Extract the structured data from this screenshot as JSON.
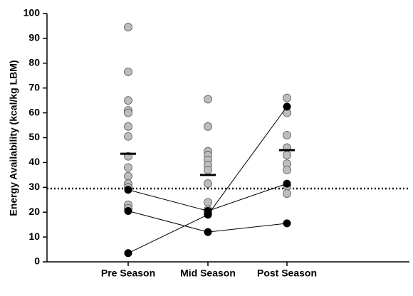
{
  "chart_data": {
    "type": "dot",
    "ylabel": "Energy Availability (kcal/kg LBM)",
    "categories": [
      "Pre Season",
      "Mid Season",
      "Post Season"
    ],
    "groups": [
      {
        "color": "#bdbdbd",
        "values": [
          94.5,
          76.5,
          65,
          61,
          60,
          54.5,
          50.5,
          42.5,
          38,
          34.5,
          31.5,
          30,
          23,
          21.5
        ]
      },
      {
        "color": "#bdbdbd",
        "values": [
          65.5,
          54.5,
          44.5,
          43,
          41,
          39,
          37,
          31.5,
          24,
          21,
          19.5
        ]
      },
      {
        "color": "#bdbdbd",
        "values": [
          66,
          60,
          51,
          46,
          43,
          39.5,
          37,
          30.5,
          27.5
        ]
      }
    ],
    "means": [
      43.5,
      35,
      45
    ],
    "individuals": [
      {
        "color": "#000000",
        "values": [
          29,
          20.5,
          31.5
        ]
      },
      {
        "color": "#000000",
        "values": [
          20.5,
          12,
          15.5
        ]
      },
      {
        "color": "#000000",
        "values": [
          3.5,
          19,
          62.5
        ]
      }
    ],
    "reference_line": 29.5,
    "ylim": [
      0,
      100
    ],
    "yticks": [
      0,
      10,
      20,
      30,
      40,
      50,
      60,
      70,
      80,
      90,
      100
    ]
  }
}
